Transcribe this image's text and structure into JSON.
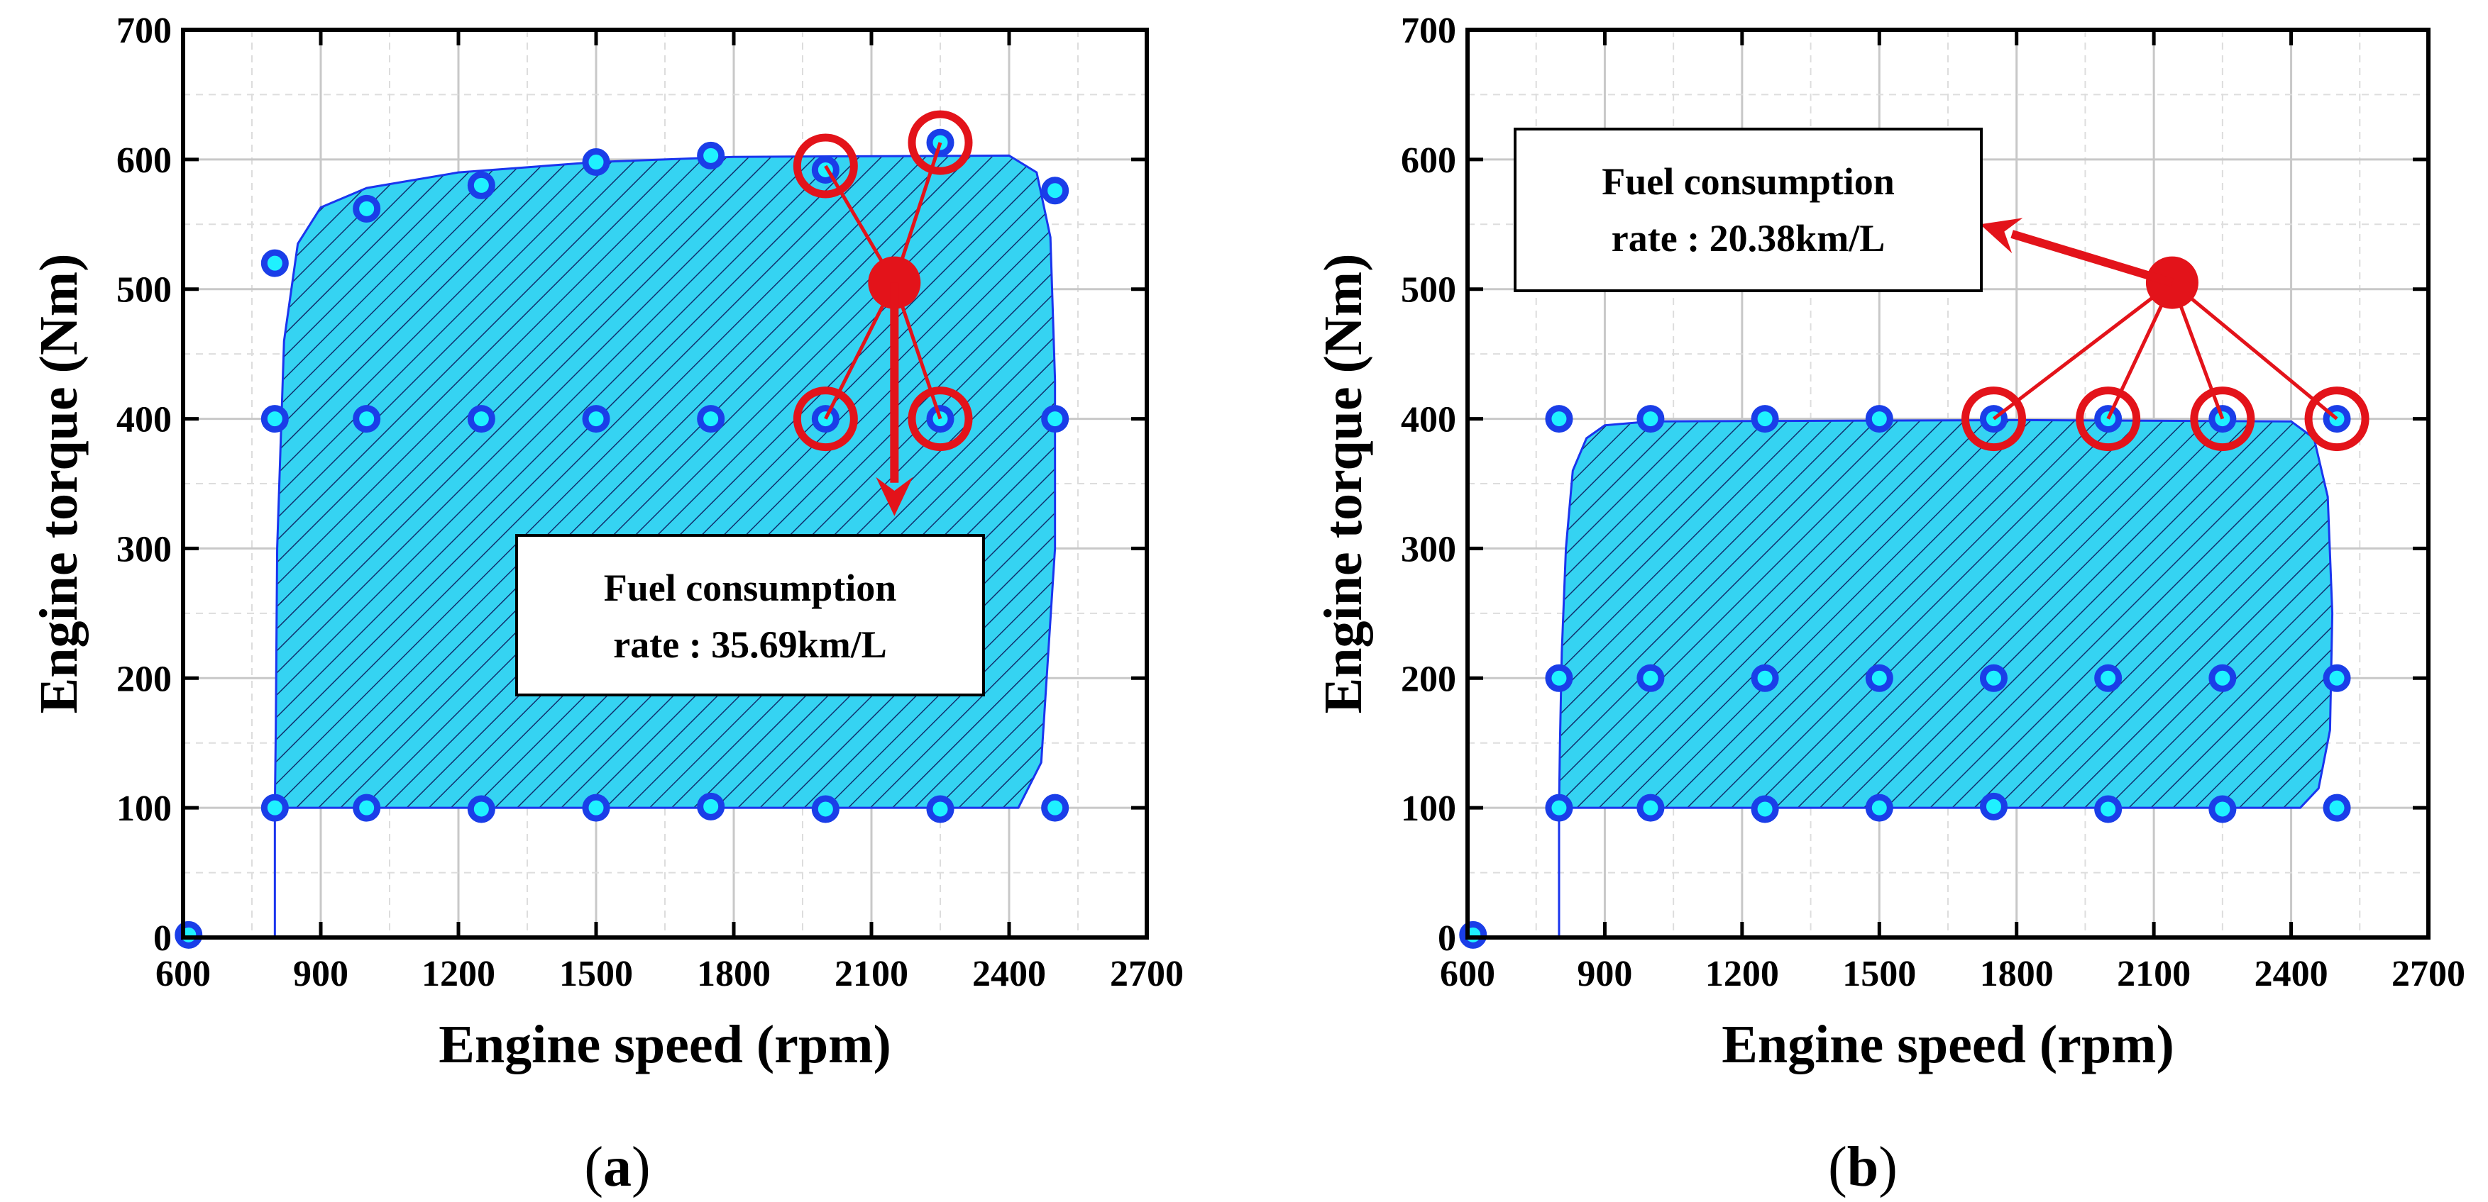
{
  "colors": {
    "region_fill": "#35d3f2",
    "region_edge": "#1a35ee",
    "hatch": "#10306e",
    "point_fill": "#1ff1ff",
    "point_edge": "#1a3ee8",
    "highlight": "#e3131a",
    "grid": "#c8c8c8"
  },
  "chart_data": [
    {
      "id": "a",
      "type": "scatter",
      "panel_label": "a",
      "xlabel": "Engine speed (rpm)",
      "ylabel": "Engine torque (Nm)",
      "xlim": [
        600,
        2700
      ],
      "ylim": [
        0,
        700
      ],
      "xticks": [
        600,
        900,
        1200,
        1500,
        1800,
        2100,
        2400,
        2700
      ],
      "yticks": [
        0,
        100,
        200,
        300,
        400,
        500,
        600,
        700
      ],
      "grid": true,
      "points": [
        [
          612,
          2
        ],
        [
          800,
          520
        ],
        [
          800,
          400
        ],
        [
          800,
          100
        ],
        [
          1000,
          562
        ],
        [
          1000,
          400
        ],
        [
          1000,
          100
        ],
        [
          1250,
          580
        ],
        [
          1250,
          400
        ],
        [
          1250,
          99
        ],
        [
          1500,
          598
        ],
        [
          1500,
          400
        ],
        [
          1500,
          100
        ],
        [
          1750,
          603
        ],
        [
          1750,
          400
        ],
        [
          1750,
          101
        ],
        [
          2000,
          592
        ],
        [
          2000,
          400
        ],
        [
          2000,
          99
        ],
        [
          2250,
          613
        ],
        [
          2250,
          400
        ],
        [
          2250,
          99
        ],
        [
          2500,
          576
        ],
        [
          2500,
          400
        ],
        [
          2500,
          100
        ]
      ],
      "operating_region": [
        [
          800,
          100
        ],
        [
          2420,
          100
        ],
        [
          2470,
          135
        ],
        [
          2500,
          300
        ],
        [
          2500,
          430
        ],
        [
          2490,
          540
        ],
        [
          2460,
          590
        ],
        [
          2400,
          603
        ],
        [
          1800,
          602
        ],
        [
          1500,
          598
        ],
        [
          1200,
          590
        ],
        [
          1000,
          578
        ],
        [
          900,
          563
        ],
        [
          850,
          535
        ],
        [
          820,
          460
        ],
        [
          805,
          300
        ],
        [
          802,
          160
        ]
      ],
      "hub": [
        2150,
        505
      ],
      "highlighted": [
        [
          2000,
          595
        ],
        [
          2250,
          613
        ],
        [
          2000,
          400
        ],
        [
          2250,
          400
        ]
      ],
      "arrow_to": [
        2150,
        325
      ],
      "note": [
        "Fuel consumption",
        "rate : 35.69km/L"
      ]
    },
    {
      "id": "b",
      "type": "scatter",
      "panel_label": "b",
      "xlabel": "Engine speed (rpm)",
      "ylabel": "Engine torque (Nm)",
      "xlim": [
        600,
        2700
      ],
      "ylim": [
        0,
        700
      ],
      "xticks": [
        600,
        900,
        1200,
        1500,
        1800,
        2100,
        2400,
        2700
      ],
      "yticks": [
        0,
        100,
        200,
        300,
        400,
        500,
        600,
        700
      ],
      "grid": true,
      "points": [
        [
          612,
          2
        ],
        [
          800,
          400
        ],
        [
          800,
          200
        ],
        [
          800,
          100
        ],
        [
          1000,
          400
        ],
        [
          1000,
          200
        ],
        [
          1000,
          100
        ],
        [
          1250,
          400
        ],
        [
          1250,
          200
        ],
        [
          1250,
          99
        ],
        [
          1500,
          400
        ],
        [
          1500,
          200
        ],
        [
          1500,
          100
        ],
        [
          1750,
          400
        ],
        [
          1750,
          200
        ],
        [
          1750,
          101
        ],
        [
          2000,
          400
        ],
        [
          2000,
          200
        ],
        [
          2000,
          99
        ],
        [
          2250,
          400
        ],
        [
          2250,
          200
        ],
        [
          2250,
          99
        ],
        [
          2500,
          400
        ],
        [
          2500,
          200
        ],
        [
          2500,
          100
        ]
      ],
      "operating_region": [
        [
          800,
          100
        ],
        [
          2420,
          100
        ],
        [
          2460,
          115
        ],
        [
          2485,
          160
        ],
        [
          2490,
          250
        ],
        [
          2480,
          340
        ],
        [
          2450,
          385
        ],
        [
          2400,
          398
        ],
        [
          1800,
          399
        ],
        [
          1000,
          398
        ],
        [
          900,
          395
        ],
        [
          860,
          385
        ],
        [
          830,
          360
        ],
        [
          815,
          300
        ],
        [
          806,
          220
        ],
        [
          802,
          150
        ]
      ],
      "hub": [
        2140,
        505
      ],
      "highlighted": [
        [
          1750,
          400
        ],
        [
          2000,
          400
        ],
        [
          2250,
          400
        ],
        [
          2500,
          400
        ]
      ],
      "arrow_to": [
        1720,
        550
      ],
      "note": [
        "Fuel consumption",
        "rate : 20.38km/L"
      ]
    }
  ]
}
